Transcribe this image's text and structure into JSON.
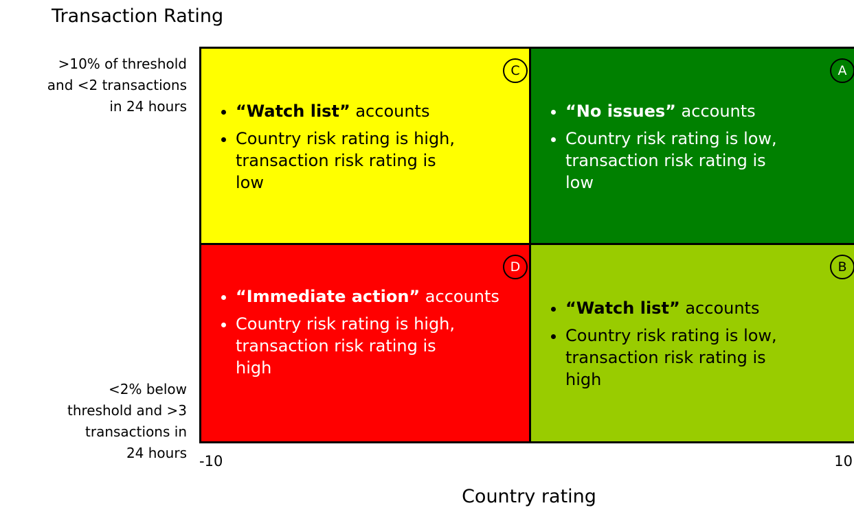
{
  "title": "Transaction Rating",
  "y_axis": {
    "top_label_lines": [
      ">10% of threshold",
      "and <2 transactions",
      "in 24 hours"
    ],
    "bottom_label_lines": [
      "<2% below",
      "threshold and >3",
      "transactions in",
      "24 hours"
    ]
  },
  "x_axis": {
    "min_label": "-10",
    "max_label": "10",
    "title": "Country rating"
  },
  "quadrants": [
    {
      "letter": "C",
      "color": "#ffff00",
      "text_color": "#000000",
      "heading_bold": "“Watch list”",
      "heading_rest": " accounts",
      "detail_lines": [
        "Country risk rating is high,",
        "transaction risk rating is",
        "low"
      ]
    },
    {
      "letter": "A",
      "color": "#008000",
      "text_color": "#ffffff",
      "heading_bold": "“No issues”",
      "heading_rest": " accounts",
      "detail_lines": [
        "Country risk rating is low,",
        "transaction risk rating is",
        "low"
      ]
    },
    {
      "letter": "D",
      "color": "#ff0000",
      "text_color": "#ffffff",
      "heading_bold": "“Immediate action”",
      "heading_rest": " accounts",
      "detail_lines": [
        "Country risk rating is high,",
        "transaction risk rating is",
        "high"
      ]
    },
    {
      "letter": "B",
      "color": "#99cc00",
      "text_color": "#000000",
      "heading_bold": "“Watch list”",
      "heading_rest": " accounts",
      "detail_lines": [
        "Country risk rating is low,",
        "transaction risk rating is",
        "high"
      ]
    }
  ]
}
